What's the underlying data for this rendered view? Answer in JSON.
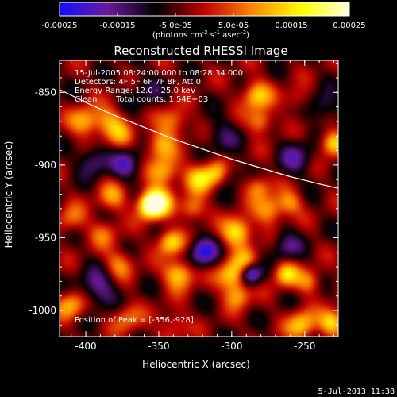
{
  "chart_data": {
    "type": "heatmap",
    "title": "Reconstructed RHESSI Image",
    "xlabel": "Heliocentric X (arcsec)",
    "ylabel": "Heliocentric Y (arcsec)",
    "xlim": [
      -418,
      -227
    ],
    "ylim": [
      -1018,
      -828
    ],
    "x_ticks": [
      -400,
      -350,
      -300,
      -250
    ],
    "x_tick_labels": [
      "-400",
      "-350",
      "-300",
      "-250"
    ],
    "y_ticks": [
      -850,
      -900,
      -950,
      -1000
    ],
    "y_tick_labels": [
      "-850",
      "-900",
      "-950",
      "-1000"
    ],
    "colorbar": {
      "range": [
        -0.00025,
        0.00025
      ],
      "ticks": [
        -0.00025,
        -0.00015,
        -5e-05,
        5e-05,
        0.00015,
        0.00025
      ],
      "tick_labels": [
        "-0.00025",
        "-0.00015",
        "-5.0e-05",
        "5.0e-05",
        "0.00015",
        "0.00025"
      ],
      "units_label": "(photons cm-2 s-1 asec-2)",
      "colors": [
        "#1010ff",
        "#6a1a9a",
        "#000000",
        "#c00000",
        "#ff8800",
        "#ffff00",
        "#ffffe0"
      ]
    },
    "annotations": {
      "time_range": "15-Jul-2005 08:24:00.000 to 08:28:34.000",
      "detectors": "Detectors: 4F 5F 6F 7F 8F, Att 0",
      "energy_range": "Energy Range: 12.0 - 25.0 keV",
      "clean": "Clean",
      "total_counts": "Total counts: 1.54E+03",
      "peak": "Position of Peak = [-356,-928]"
    },
    "limb_curve": {
      "x": [
        -418,
        -400,
        -380,
        -360,
        -340,
        -320,
        -300,
        -280,
        -260,
        -240,
        -227
      ],
      "y": [
        -848,
        -857,
        -866,
        -874,
        -882,
        -889,
        -896,
        -902,
        -908,
        -913,
        -916
      ]
    },
    "blobs": [
      {
        "x": -401,
        "y": -870,
        "v": 0.00016,
        "s": 7
      },
      {
        "x": -383,
        "y": -871,
        "v": 0.00014,
        "s": 8
      },
      {
        "x": -395,
        "y": -897,
        "v": -0.00012,
        "s": 7
      },
      {
        "x": -340,
        "y": -870,
        "v": 0.00013,
        "s": 7
      },
      {
        "x": -307,
        "y": -880,
        "v": -8e-05,
        "s": 8
      },
      {
        "x": -283,
        "y": -852,
        "v": 0.00018,
        "s": 7
      },
      {
        "x": -280,
        "y": -870,
        "v": 0.00014,
        "s": 6
      },
      {
        "x": -349,
        "y": -886,
        "v": 0.00015,
        "s": 7
      },
      {
        "x": -347,
        "y": -905,
        "v": 0.00017,
        "s": 7
      },
      {
        "x": -351,
        "y": -925,
        "v": 0.00022,
        "s": 7
      },
      {
        "x": -356,
        "y": -928,
        "v": 0.00025,
        "s": 6
      },
      {
        "x": -382,
        "y": -922,
        "v": 0.00012,
        "s": 7
      },
      {
        "x": -388,
        "y": -947,
        "v": 9e-05,
        "s": 7
      },
      {
        "x": -372,
        "y": -900,
        "v": -0.00014,
        "s": 7
      },
      {
        "x": -322,
        "y": -909,
        "v": 0.00018,
        "s": 7
      },
      {
        "x": -310,
        "y": -905,
        "v": 0.00016,
        "s": 6
      },
      {
        "x": -327,
        "y": -930,
        "v": 0.00014,
        "s": 6
      },
      {
        "x": -296,
        "y": -946,
        "v": 0.00022,
        "s": 7
      },
      {
        "x": -274,
        "y": -931,
        "v": 0.00015,
        "s": 7
      },
      {
        "x": -282,
        "y": -915,
        "v": 0.00013,
        "s": 6
      },
      {
        "x": -260,
        "y": -926,
        "v": 0.00012,
        "s": 6
      },
      {
        "x": -302,
        "y": -906,
        "v": -9e-05,
        "s": 6
      },
      {
        "x": -342,
        "y": -953,
        "v": 0.0002,
        "s": 6
      },
      {
        "x": -336,
        "y": -975,
        "v": 0.0002,
        "s": 7
      },
      {
        "x": -320,
        "y": -960,
        "v": -0.00018,
        "s": 7
      },
      {
        "x": -300,
        "y": -976,
        "v": 0.0002,
        "s": 7
      },
      {
        "x": -296,
        "y": -990,
        "v": 0.00014,
        "s": 6
      },
      {
        "x": -287,
        "y": -975,
        "v": -0.00022,
        "s": 5
      },
      {
        "x": -377,
        "y": -968,
        "v": 0.00012,
        "s": 7
      },
      {
        "x": -392,
        "y": -985,
        "v": -0.00013,
        "s": 9
      },
      {
        "x": -410,
        "y": -996,
        "v": 0.00016,
        "s": 7
      },
      {
        "x": -372,
        "y": -1005,
        "v": 0.00011,
        "s": 7
      },
      {
        "x": -340,
        "y": -1010,
        "v": 9e-05,
        "s": 7
      },
      {
        "x": -263,
        "y": -975,
        "v": 0.00018,
        "s": 6
      },
      {
        "x": -247,
        "y": -980,
        "v": 0.00012,
        "s": 6
      },
      {
        "x": -252,
        "y": -1010,
        "v": 0.00018,
        "s": 7
      },
      {
        "x": -231,
        "y": -1008,
        "v": 0.0002,
        "s": 6
      },
      {
        "x": -231,
        "y": -885,
        "v": 0.00019,
        "s": 6
      },
      {
        "x": -237,
        "y": -860,
        "v": -0.0001,
        "s": 7
      },
      {
        "x": -256,
        "y": -895,
        "v": -0.00011,
        "s": 8
      },
      {
        "x": -290,
        "y": -965,
        "v": 0.00011,
        "s": 6
      },
      {
        "x": -263,
        "y": -955,
        "v": -0.00011,
        "s": 7
      },
      {
        "x": -360,
        "y": -850,
        "v": -6e-05,
        "s": 9
      },
      {
        "x": -410,
        "y": -937,
        "v": 0.0001,
        "s": 7
      },
      {
        "x": -375,
        "y": -880,
        "v": 7e-05,
        "s": 6
      },
      {
        "x": -255,
        "y": -855,
        "v": 8e-05,
        "s": 6
      }
    ]
  },
  "footer": {
    "timestamp": "5-Jul-2013 11:38"
  }
}
